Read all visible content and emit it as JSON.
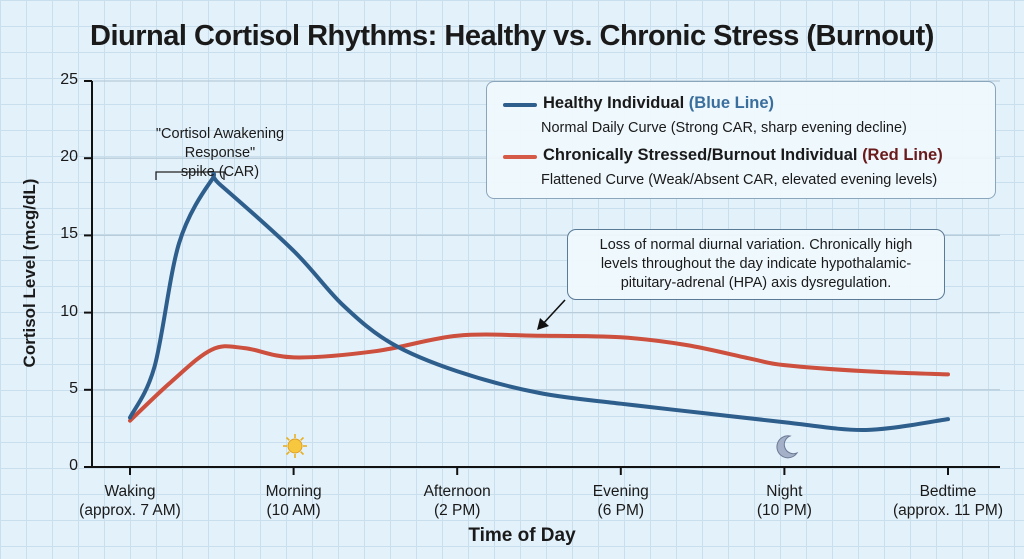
{
  "chart_data": {
    "type": "line",
    "title": "Diurnal Cortisol Rhythms: Healthy vs. Chronic Stress (Burnout)",
    "xlabel": "Time of Day",
    "ylabel": "Cortisol Level (mcg/dL)",
    "ylim": [
      0,
      25
    ],
    "yticks": [
      0,
      5,
      10,
      15,
      20,
      25
    ],
    "grid": true,
    "legend_position": "top-right",
    "categories": [
      {
        "line1": "Waking",
        "line2": "(approx. 7 AM)"
      },
      {
        "line1": "Morning",
        "line2": "(10 AM)"
      },
      {
        "line1": "Afternoon",
        "line2": "(2 PM)"
      },
      {
        "line1": "Evening",
        "line2": "(6 PM)"
      },
      {
        "line1": "Night",
        "line2": "(10 PM)"
      },
      {
        "line1": "Bedtime",
        "line2": "(approx. 11 PM)"
      }
    ],
    "series": [
      {
        "name": "Healthy Individual",
        "name_suffix": "(Blue Line)",
        "description": "Normal Daily Curve (Strong CAR, sharp evening decline)",
        "color": "#2e5e8c",
        "suffix_color": "#3a6e9c",
        "x": [
          0,
          0.15,
          0.3,
          0.5,
          0.55,
          1.0,
          1.3,
          1.6,
          2.0,
          2.5,
          3.0,
          3.5,
          4.0,
          4.5,
          5.0
        ],
        "values": [
          3.2,
          6.5,
          14.5,
          18.6,
          18.3,
          14.0,
          10.5,
          8.0,
          6.2,
          4.8,
          4.1,
          3.5,
          2.9,
          2.4,
          3.1
        ]
      },
      {
        "name": "Chronically Stressed/Burnout Individual",
        "name_suffix": "(Red Line)",
        "description": "Flattened Curve (Weak/Absent CAR, elevated evening levels)",
        "color": "#cd4f3d",
        "suffix_color": "#6a1a1a",
        "x": [
          0,
          0.25,
          0.5,
          0.7,
          1.0,
          1.5,
          2.0,
          2.5,
          3.0,
          3.4,
          3.8,
          4.0,
          4.5,
          5.0
        ],
        "values": [
          3.0,
          5.5,
          7.6,
          7.7,
          7.1,
          7.5,
          8.5,
          8.5,
          8.4,
          7.9,
          7.0,
          6.6,
          6.2,
          6.0
        ]
      }
    ],
    "annotations": {
      "car_label": "\"Cortisol Awakening Response\" spike (CAR)",
      "car_line1": "\"Cortisol Awakening Response\"",
      "car_line2": "spike (CAR)",
      "callout_line1": "Loss of normal diurnal variation. Chronically high",
      "callout_line2": "levels throughout the day indicate hypothalamic-",
      "callout_line3": "pituitary-adrenal (HPA) axis dysregulation.",
      "icons": [
        {
          "name": "sun-icon",
          "x": 1
        },
        {
          "name": "moon-icon",
          "x": 4
        }
      ]
    }
  }
}
